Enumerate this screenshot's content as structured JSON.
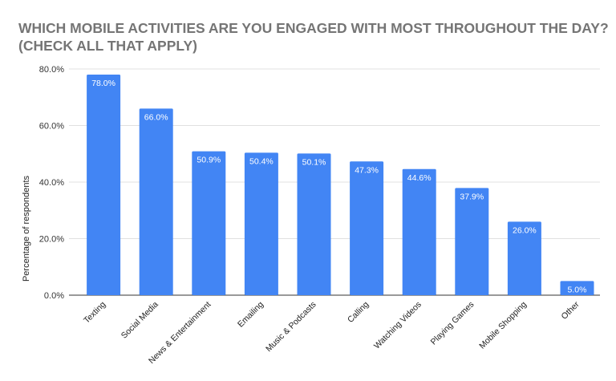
{
  "chart_data": {
    "type": "bar",
    "title": "WHICH MOBILE ACTIVITIES ARE YOU ENGAGED WITH MOST THROUGHOUT THE DAY? (CHECK ALL THAT APPLY)",
    "xlabel": "",
    "ylabel": "Percentage of respondents",
    "ylim": [
      0,
      80
    ],
    "yticks": [
      "0.0%",
      "20.0%",
      "40.0%",
      "60.0%",
      "80.0%"
    ],
    "grid": true,
    "bar_color": "#4285f4",
    "categories": [
      "Texting",
      "Social Media",
      "News & Entertainment",
      "Emailing",
      "Music & Podcasts",
      "Calling",
      "Watching Videos",
      "Playing Games",
      "Mobile Shopping",
      "Other"
    ],
    "values": [
      78.0,
      66.0,
      50.9,
      50.4,
      50.1,
      47.3,
      44.6,
      37.9,
      26.0,
      5.0
    ],
    "data_labels": [
      "78.0%",
      "66.0%",
      "50.9%",
      "50.4%",
      "50.1%",
      "47.3%",
      "44.6%",
      "37.9%",
      "26.0%",
      "5.0%"
    ]
  }
}
